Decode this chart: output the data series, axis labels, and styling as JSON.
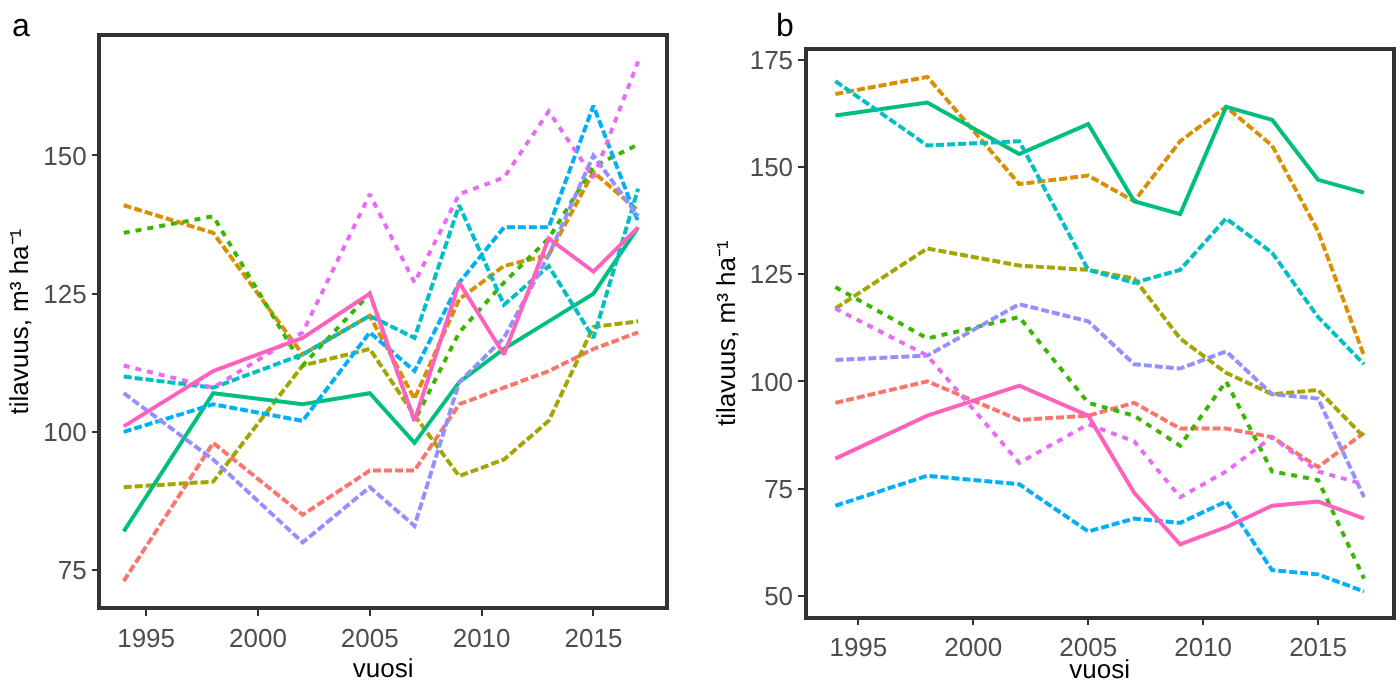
{
  "chart_data": [
    {
      "type": "line",
      "title": "a",
      "xlabel": "vuosi",
      "ylabel": "tilavuus, m³ ha⁻¹",
      "x": [
        1994,
        1998,
        2002,
        2005,
        2007,
        2009,
        2011,
        2013,
        2015,
        2017
      ],
      "xlim": [
        1993,
        2018.2
      ],
      "xticks": [
        1995,
        2000,
        2005,
        2010,
        2015
      ],
      "ylim": [
        68.5,
        171.4
      ],
      "yticks": [
        75,
        100,
        125,
        150
      ],
      "grid": false,
      "marker": "none",
      "series": [
        {
          "color": "#F8766D",
          "line_style": "dashed",
          "values": [
            73,
            98,
            85,
            93,
            93,
            105,
            108,
            111,
            115,
            118
          ]
        },
        {
          "color": "#D89000",
          "line_style": "dashed",
          "values": [
            141,
            136,
            114,
            121,
            106,
            124,
            130,
            132,
            147,
            140
          ]
        },
        {
          "color": "#A3A500",
          "line_style": "dashed",
          "values": [
            90,
            91,
            112,
            115,
            103,
            92,
            95,
            102,
            119,
            120
          ]
        },
        {
          "color": "#39B600",
          "line_style": "dotted",
          "values": [
            136,
            139,
            112,
            125,
            102,
            118,
            127,
            135,
            148,
            152
          ]
        },
        {
          "color": "#00BF7D",
          "line_style": "solid",
          "values": [
            82,
            107,
            105,
            107,
            98,
            109,
            115,
            120,
            125,
            137
          ]
        },
        {
          "color": "#00BFC4",
          "line_style": "dashed",
          "values": [
            110,
            108,
            114,
            121,
            117,
            141,
            123,
            130,
            117,
            144
          ]
        },
        {
          "color": "#00B0F6",
          "line_style": "dashed",
          "values": [
            100,
            105,
            102,
            118,
            111,
            127,
            137,
            137,
            159,
            138
          ]
        },
        {
          "color": "#9590FF",
          "line_style": "dashed",
          "values": [
            107,
            95,
            80,
            90,
            83,
            109,
            117,
            132,
            150,
            139
          ]
        },
        {
          "color": "#E76BF3",
          "line_style": "dotted",
          "values": [
            112,
            108,
            118,
            143,
            127,
            143,
            146,
            158,
            146,
            167
          ]
        },
        {
          "color": "#FF62BC",
          "line_style": "solid",
          "values": [
            101,
            111,
            117,
            125,
            102,
            127,
            114,
            135,
            129,
            137
          ]
        }
      ]
    },
    {
      "type": "line",
      "title": "b",
      "xlabel": "vuosi",
      "ylabel": "tilavuus, m³ ha⁻¹",
      "x": [
        1994,
        1998,
        2002,
        2005,
        2007,
        2009,
        2011,
        2013,
        2015,
        2017
      ],
      "xlim": [
        1992.8,
        2018.2
      ],
      "xticks": [
        1995,
        2000,
        2005,
        2010,
        2015
      ],
      "ylim": [
        45.4,
        177.1
      ],
      "yticks": [
        50,
        75,
        100,
        125,
        150,
        175
      ],
      "grid": false,
      "marker": "none",
      "series": [
        {
          "color": "#F8766D",
          "line_style": "dashed",
          "values": [
            95,
            100,
            91,
            92,
            95,
            89,
            89,
            87,
            80,
            88
          ]
        },
        {
          "color": "#D89000",
          "line_style": "dashed",
          "values": [
            167,
            171,
            146,
            148,
            142,
            156,
            164,
            155,
            135,
            106
          ]
        },
        {
          "color": "#A3A500",
          "line_style": "dashed",
          "values": [
            117,
            131,
            127,
            126,
            124,
            110,
            102,
            97,
            98,
            87
          ]
        },
        {
          "color": "#39B600",
          "line_style": "dotted",
          "values": [
            122,
            110,
            115,
            95,
            92,
            85,
            100,
            79,
            77,
            54
          ]
        },
        {
          "color": "#00BF7D",
          "line_style": "solid",
          "values": [
            162,
            165,
            153,
            160,
            142,
            139,
            164,
            161,
            147,
            144
          ]
        },
        {
          "color": "#00BFC4",
          "line_style": "dashed",
          "values": [
            170,
            155,
            156,
            126,
            123,
            126,
            138,
            130,
            115,
            104
          ]
        },
        {
          "color": "#00B0F6",
          "line_style": "dashed",
          "values": [
            71,
            78,
            76,
            65,
            68,
            67,
            72,
            56,
            55,
            51
          ]
        },
        {
          "color": "#9590FF",
          "line_style": "dashed",
          "values": [
            105,
            106,
            118,
            114,
            104,
            103,
            107,
            97,
            96,
            73
          ]
        },
        {
          "color": "#E76BF3",
          "line_style": "dotted",
          "values": [
            117,
            106,
            81,
            90,
            86,
            73,
            79,
            87,
            79,
            76
          ]
        },
        {
          "color": "#FF62BC",
          "line_style": "solid",
          "values": [
            82,
            92,
            99,
            92,
            74,
            62,
            66,
            71,
            72,
            68
          ]
        }
      ]
    }
  ]
}
